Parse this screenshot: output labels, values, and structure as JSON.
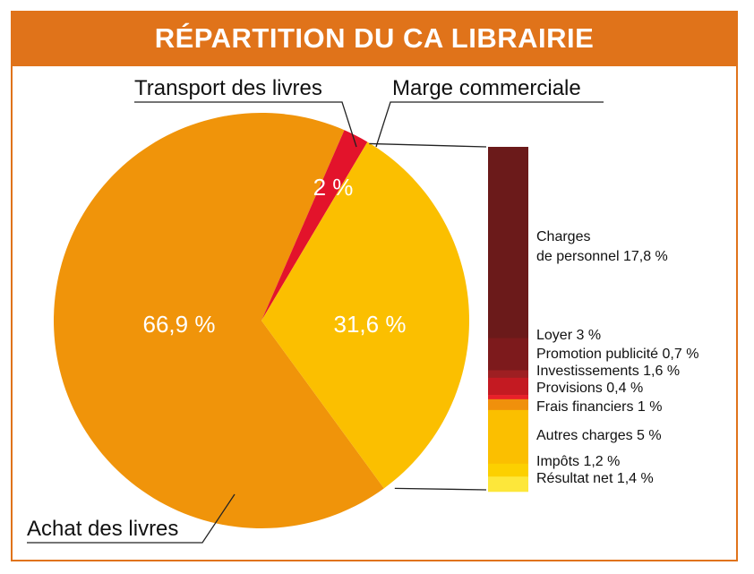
{
  "title": "RÉPARTITION DU CA LIBRAIRIE",
  "colors": {
    "banner": "#e0731a",
    "achat": "#f0940a",
    "transport": "#e3132b",
    "marge": "#fbbf00"
  },
  "chart_data": [
    {
      "type": "pie",
      "title": "RÉPARTITION DU CA LIBRAIRIE",
      "slices": [
        {
          "name": "Achat des livres",
          "value": 66.9,
          "label": "66,9 %",
          "color": "#f0940a"
        },
        {
          "name": "Transport des livres",
          "value": 2,
          "label": "2 %",
          "color": "#e3132b"
        },
        {
          "name": "Marge commerciale",
          "value": 31.6,
          "label": "31,6 %",
          "color": "#fbbf00"
        }
      ]
    },
    {
      "type": "bar",
      "stacked": true,
      "breakdown_of": "Marge commerciale",
      "segments": [
        {
          "label": "Charges\nde personnel 17,8 %",
          "value": 17.8,
          "color": "#6b1a1a"
        },
        {
          "label": "Loyer 3 %",
          "value": 3,
          "color": "#7d1a1c"
        },
        {
          "label": "Promotion publicité 0,7 %",
          "value": 0.7,
          "color": "#9e1f22"
        },
        {
          "label": "Investissements 1,6 %",
          "value": 1.6,
          "color": "#c41a22"
        },
        {
          "label": "Provisions 0,4 %",
          "value": 0.4,
          "color": "#e8202a"
        },
        {
          "label": "Frais financiers 1 %",
          "value": 1,
          "color": "#f0900c"
        },
        {
          "label": "Autres charges 5 %",
          "value": 5,
          "color": "#fbbf00"
        },
        {
          "label": "Impôts 1,2 %",
          "value": 1.2,
          "color": "#fcd000"
        },
        {
          "label": "Résultat net 1,4 %",
          "value": 1.4,
          "color": "#fde73a"
        }
      ]
    }
  ]
}
